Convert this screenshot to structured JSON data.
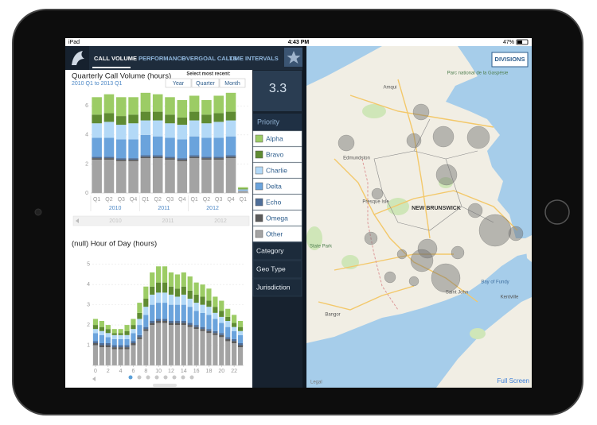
{
  "status_bar": {
    "device": "iPad",
    "time": "4:43 PM",
    "battery": "47%"
  },
  "nav": {
    "tabs": [
      "CALL VOLUME",
      "PERFORMANCE",
      "OVERGOAL CALLS",
      "TIME INTERVALS"
    ]
  },
  "priorities": [
    {
      "name": "Alpha",
      "color": "#9ccc65"
    },
    {
      "name": "Bravo",
      "color": "#5f8b32"
    },
    {
      "name": "Charlie",
      "color": "#b3d9f7"
    },
    {
      "name": "Delta",
      "color": "#6aa3dc"
    },
    {
      "name": "Echo",
      "color": "#4e6e99"
    },
    {
      "name": "Omega",
      "color": "#5a5a5a"
    },
    {
      "name": "Other",
      "color": "#a3a3a3"
    }
  ],
  "quarterly_chart": {
    "type": "bar",
    "stacked": true,
    "title": "Quarterly Call Volume (hours)",
    "subtitle": "2010 Q1 to 2013 Q1",
    "select_label": "Select most recent:",
    "buttons": [
      "Year",
      "Quarter",
      "Month"
    ],
    "categories": [
      "Q1",
      "Q2",
      "Q3",
      "Q4",
      "Q1",
      "Q2",
      "Q3",
      "Q4",
      "Q1",
      "Q2",
      "Q3",
      "Q4",
      "Q1"
    ],
    "years": [
      "2010",
      "2011",
      "2012"
    ],
    "ylim": [
      0,
      7
    ],
    "yticks": [
      0,
      2,
      4,
      6
    ],
    "series": [
      {
        "values": [
          1.2,
          1.3,
          1.3,
          1.2,
          1.3,
          1.2,
          1.2,
          1.2,
          1.1,
          1.0,
          1.2,
          1.3,
          0.1
        ]
      },
      {
        "values": [
          0.6,
          0.6,
          0.6,
          0.6,
          0.6,
          0.6,
          0.6,
          0.5,
          0.6,
          0.6,
          0.6,
          0.6,
          0.05
        ]
      },
      {
        "values": [
          1.0,
          1.1,
          1.0,
          1.1,
          1.0,
          1.1,
          1.0,
          1.0,
          1.1,
          1.0,
          1.1,
          1.1,
          0.05
        ]
      },
      {
        "values": [
          1.3,
          1.3,
          1.3,
          1.3,
          1.4,
          1.3,
          1.3,
          1.3,
          1.3,
          1.3,
          1.3,
          1.3,
          0.05
        ]
      },
      {
        "values": [
          0.1,
          0.1,
          0.1,
          0.1,
          0.1,
          0.1,
          0.1,
          0.1,
          0.1,
          0.1,
          0.1,
          0.1,
          0
        ]
      },
      {
        "values": [
          0.1,
          0.1,
          0.1,
          0.1,
          0.1,
          0.1,
          0.1,
          0.1,
          0.1,
          0.1,
          0.1,
          0.1,
          0
        ]
      },
      {
        "values": [
          2.3,
          2.3,
          2.2,
          2.2,
          2.4,
          2.4,
          2.3,
          2.2,
          2.4,
          2.3,
          2.3,
          2.4,
          0.15
        ]
      }
    ]
  },
  "hourly_chart": {
    "type": "bar",
    "stacked": true,
    "title": "(null) Hour of Day (hours)",
    "x": [
      0,
      1,
      2,
      3,
      4,
      5,
      6,
      7,
      8,
      9,
      10,
      11,
      12,
      13,
      14,
      15,
      16,
      17,
      18,
      19,
      20,
      21,
      22,
      23
    ],
    "xlim": [
      -0.5,
      23.5
    ],
    "xticks": [
      0,
      2,
      4,
      6,
      8,
      10,
      12,
      14,
      16,
      18,
      20,
      22
    ],
    "ylim": [
      0,
      5.5
    ],
    "yticks": [
      1,
      2,
      3,
      4,
      5
    ],
    "series": [
      {
        "values": [
          0.3,
          0.3,
          0.2,
          0.2,
          0.2,
          0.3,
          0.3,
          0.5,
          0.6,
          0.7,
          0.8,
          0.8,
          0.7,
          0.7,
          0.7,
          0.7,
          0.6,
          0.6,
          0.6,
          0.5,
          0.5,
          0.4,
          0.4,
          0.3
        ]
      },
      {
        "values": [
          0.2,
          0.2,
          0.2,
          0.1,
          0.1,
          0.2,
          0.2,
          0.3,
          0.4,
          0.4,
          0.5,
          0.5,
          0.4,
          0.4,
          0.4,
          0.4,
          0.4,
          0.4,
          0.3,
          0.3,
          0.3,
          0.2,
          0.2,
          0.2
        ]
      },
      {
        "values": [
          0.2,
          0.2,
          0.2,
          0.2,
          0.2,
          0.2,
          0.2,
          0.3,
          0.4,
          0.5,
          0.5,
          0.5,
          0.5,
          0.4,
          0.5,
          0.4,
          0.4,
          0.4,
          0.4,
          0.3,
          0.3,
          0.3,
          0.2,
          0.2
        ]
      },
      {
        "values": [
          0.4,
          0.4,
          0.3,
          0.3,
          0.3,
          0.3,
          0.4,
          0.5,
          0.6,
          0.8,
          0.8,
          0.8,
          0.8,
          0.8,
          0.8,
          0.8,
          0.7,
          0.7,
          0.7,
          0.6,
          0.5,
          0.5,
          0.4,
          0.4
        ]
      },
      {
        "values": [
          0.1,
          0.1,
          0.1,
          0.1,
          0.1,
          0.1,
          0.1,
          0.1,
          0.1,
          0.1,
          0.1,
          0.1,
          0.1,
          0.1,
          0.1,
          0.1,
          0.1,
          0.1,
          0.1,
          0.1,
          0.1,
          0.1,
          0.1,
          0.1
        ]
      },
      {
        "values": [
          0.1,
          0.1,
          0.1,
          0.1,
          0.1,
          0.1,
          0.1,
          0.1,
          0.1,
          0.1,
          0.1,
          0.1,
          0.1,
          0.1,
          0.1,
          0.1,
          0.1,
          0.1,
          0.1,
          0.1,
          0.1,
          0.1,
          0.1,
          0.1
        ]
      },
      {
        "values": [
          1.0,
          0.9,
          0.9,
          0.8,
          0.8,
          0.8,
          1.0,
          1.3,
          1.7,
          2.0,
          2.1,
          2.1,
          2.0,
          2.0,
          2.0,
          1.9,
          1.8,
          1.7,
          1.6,
          1.5,
          1.4,
          1.2,
          1.1,
          0.9
        ]
      }
    ]
  },
  "sidebar": {
    "metric": "3.3",
    "priority_header": "Priority",
    "filters": [
      "Category",
      "Geo Type",
      "Jurisdiction"
    ]
  },
  "map": {
    "button": "DIVISIONS",
    "full_screen": "Full Screen",
    "legal": "Legal",
    "labels": [
      "Parc national de la Gaspésie",
      "Amqui",
      "Edmundston",
      "Presque Isle",
      "NEW BRUNSWICK",
      "State Park",
      "Bay of Fundy",
      "Saint John",
      "Kentville",
      "Bangor"
    ]
  }
}
